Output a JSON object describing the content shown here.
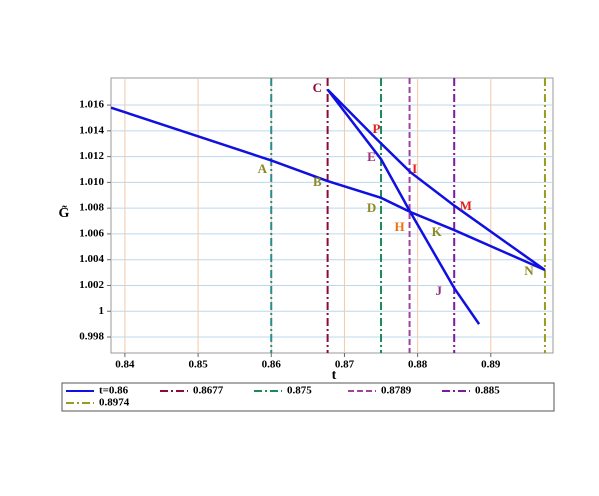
{
  "chart_data": {
    "type": "line",
    "xlabel": "t",
    "ylabel": "G̃",
    "xlim": [
      0.8381,
      0.8985
    ],
    "ylim": [
      0.99676,
      1.0181
    ],
    "xticks": [
      0.84,
      0.85,
      0.86,
      0.87,
      0.88,
      0.89
    ],
    "yticks": [
      0.998,
      {
        "value": 1,
        "label": "1"
      },
      1.002,
      1.004,
      1.006,
      1.008,
      {
        "value": 1.01,
        "label": "1.010"
      },
      1.012,
      1.014,
      1.016
    ],
    "grid": true,
    "series": [
      {
        "name": "t=0.86",
        "color": "#1010e0",
        "x": [
          0.8381,
          0.86,
          0.8677,
          0.875,
          0.879,
          0.885,
          0.8974,
          null,
          0.8677,
          0.8745,
          0.879,
          0.885,
          0.8974,
          null,
          0.8677,
          0.875,
          0.879,
          0.885,
          0.8884
        ],
        "values": [
          1.0158,
          1.0117,
          1.0101,
          1.0088,
          1.0077,
          1.0063,
          1.0032,
          null,
          1.0172,
          1.0133,
          1.0108,
          1.0082,
          1.0032,
          null,
          1.0172,
          1.0118,
          1.0077,
          1.0018,
          0.999
        ]
      }
    ],
    "vlines": [
      {
        "x": 0.86,
        "color": "#2a8a8a",
        "dash": "dashdot"
      },
      {
        "name": "0.8677",
        "x": 0.8677,
        "color": "#8b0a3a",
        "dash": "dashdot"
      },
      {
        "name": "0.875",
        "x": 0.875,
        "color": "#1a8a5a",
        "dash": "dashdot"
      },
      {
        "name": "0.8789",
        "x": 0.8789,
        "color": "#a040a0",
        "dash": "dash"
      },
      {
        "name": "0.885",
        "x": 0.885,
        "color": "#7a1aa0",
        "dash": "dashdot"
      },
      {
        "name": "0.8974",
        "x": 0.8974,
        "color": "#9a9a20",
        "dash": "dashdot"
      }
    ],
    "annotations": [
      {
        "text": "C",
        "x": 0.8663,
        "y": 1.01724,
        "color": "#8b0a3a"
      },
      {
        "text": "P",
        "x": 0.87438,
        "y": 1.01406,
        "color": "#e02020"
      },
      {
        "text": "E",
        "x": 0.8737,
        "y": 1.01189,
        "color": "#a03070"
      },
      {
        "text": "I",
        "x": 0.8796,
        "y": 1.01096,
        "color": "#e02020"
      },
      {
        "text": "M",
        "x": 0.88658,
        "y": 1.00809,
        "color": "#e02020"
      },
      {
        "text": "A",
        "x": 0.85877,
        "y": 1.01096,
        "color": "#8a8a20"
      },
      {
        "text": "B",
        "x": 0.8663,
        "y": 1.00995,
        "color": "#8a8a20"
      },
      {
        "text": "D",
        "x": 0.8737,
        "y": 1.00794,
        "color": "#8a8a20"
      },
      {
        "text": "H",
        "x": 0.87753,
        "y": 1.00647,
        "color": "#f07010"
      },
      {
        "text": "K",
        "x": 0.8826,
        "y": 1.00608,
        "color": "#8a8a20"
      },
      {
        "text": "J",
        "x": 0.88288,
        "y": 1.0015,
        "color": "#903080"
      },
      {
        "text": "N",
        "x": 0.89521,
        "y": 1.00306,
        "color": "#8a8a20"
      }
    ]
  }
}
